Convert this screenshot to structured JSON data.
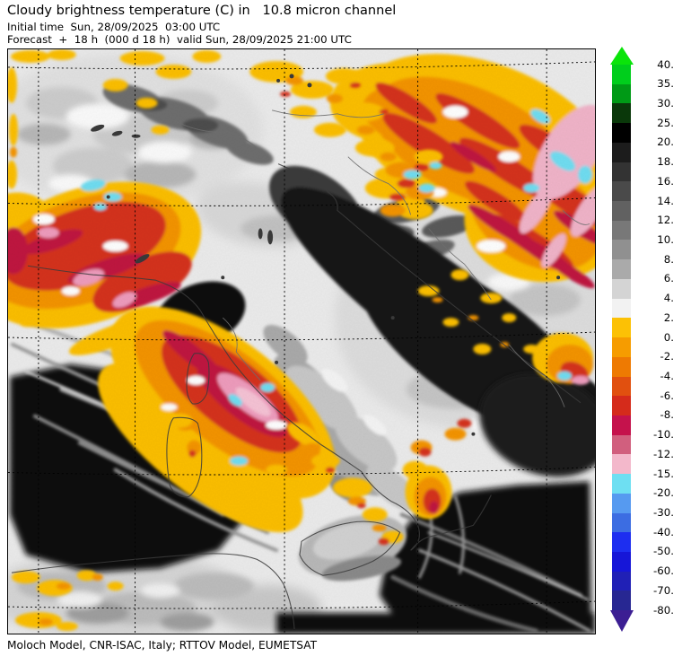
{
  "header": {
    "title": "Cloudy brightness temperature (C) in   10.8 micron channel",
    "initial_time_line": "Initial time  Sun, 28/09/2025  03:00 UTC",
    "forecast_line": "Forecast  +  18 h  (000 d 18 h)  valid Sun, 28/09/2025 21:00 UTC"
  },
  "footer": {
    "credits": "Moloch Model, CNR-ISAC, Italy; RTTOV Model, EUMETSAT"
  },
  "colorbar": {
    "tick_labels": [
      "40.",
      "35.",
      "30.",
      "25.",
      "20.",
      "18.",
      "16.",
      "14.",
      "12.",
      "10.",
      "8.",
      "6.",
      "4.",
      "2.",
      "0.",
      "-2.",
      "-4.",
      "-6.",
      "-8.",
      "-10.",
      "-12.",
      "-15.",
      "-20.",
      "-30.",
      "-40.",
      "-50.",
      "-60.",
      "-70.",
      "-80."
    ],
    "segment_colors": [
      "#00ce1c",
      "#009a16",
      "#0a380a",
      "#000000",
      "#1c1c1c",
      "#333333",
      "#4a4a4a",
      "#616161",
      "#787878",
      "#909090",
      "#aaaaaa",
      "#d4d4d4",
      "#f2f2f2",
      "#fcc105",
      "#f69c00",
      "#ee7a02",
      "#e1500f",
      "#d52b1b",
      "#c5124c",
      "#d15f7e",
      "#f3b8cb",
      "#6edff2",
      "#569af0",
      "#3c6de2",
      "#1d2ef0",
      "#1616d8",
      "#2020b6",
      "#272792"
    ],
    "arrow_top_color": "#0ae40a",
    "arrow_bottom_color": "#3c1e93"
  }
}
